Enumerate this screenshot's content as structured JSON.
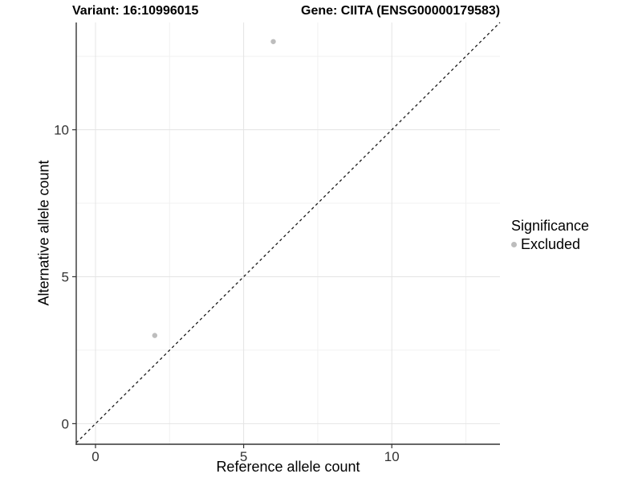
{
  "chart_data": {
    "type": "scatter",
    "titles": {
      "left": "Variant: 16:10996015",
      "right": "Gene: CIITA (ENSG00000179583)"
    },
    "xlabel": "Reference allele count",
    "ylabel": "Alternative allele count",
    "xlim": [
      -0.65,
      13.65
    ],
    "ylim": [
      -0.7,
      13.65
    ],
    "x_major_ticks": [
      0,
      5,
      10
    ],
    "y_major_ticks": [
      0,
      5,
      10
    ],
    "x_minor_ticks": [
      2.5,
      7.5,
      12.5
    ],
    "y_minor_ticks": [
      2.5,
      7.5,
      12.5
    ],
    "grid": true,
    "reference_line": {
      "type": "identity",
      "slope": 1,
      "intercept": 0,
      "style": "dashed",
      "color": "#1a1a1a"
    },
    "series": [
      {
        "name": "Excluded",
        "color": "#bdbdbd",
        "points": [
          {
            "x": 2,
            "y": 3
          },
          {
            "x": 6,
            "y": 13
          }
        ]
      }
    ],
    "legend": {
      "title": "Significance",
      "position": "right",
      "items": [
        {
          "label": "Excluded",
          "color": "#bdbdbd",
          "marker": "circle"
        }
      ]
    },
    "colors": {
      "background": "#ffffff",
      "grid_major": "#e4e4e4",
      "grid_minor": "#f1f1f1",
      "axis_line": "#333333",
      "tick_mark": "#333333",
      "tick_text": "#333333",
      "point_radius_px": 3.2
    }
  }
}
